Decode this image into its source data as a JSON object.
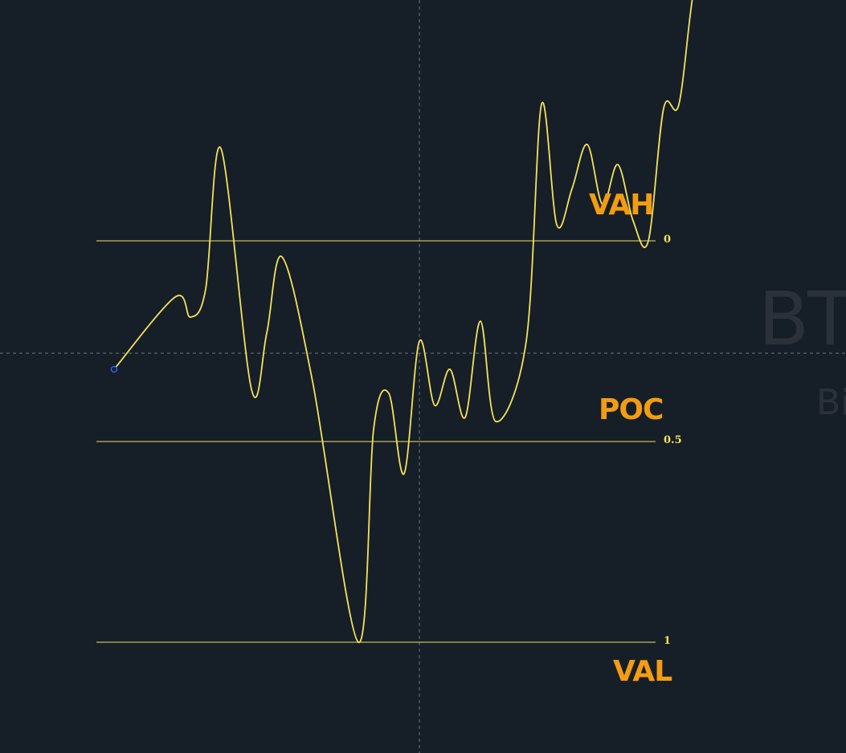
{
  "watermark": {
    "symbol": "BT",
    "subtitle": "Bi"
  },
  "chart_data": {
    "type": "line",
    "y_scale": "fibonacci-retracement",
    "levels": [
      {
        "value": 0,
        "label": "0",
        "zone": "VAH"
      },
      {
        "value": 0.5,
        "label": "0.5",
        "zone": "POC"
      },
      {
        "value": 1,
        "label": "1",
        "zone": "VAL"
      }
    ],
    "series": [
      {
        "color": "#f4e25a",
        "points": [
          [
            0,
            0.32
          ],
          [
            4,
            0.14
          ],
          [
            5,
            0.19
          ],
          [
            6,
            0.12
          ],
          [
            7,
            -0.23
          ],
          [
            9,
            0.37
          ],
          [
            10,
            0.23
          ],
          [
            11,
            0.04
          ],
          [
            13,
            0.35
          ],
          [
            16,
            1.0
          ],
          [
            17,
            0.47
          ],
          [
            18,
            0.38
          ],
          [
            19,
            0.58
          ],
          [
            20,
            0.25
          ],
          [
            21,
            0.41
          ],
          [
            22,
            0.32
          ],
          [
            23,
            0.44
          ],
          [
            24,
            0.2
          ],
          [
            25,
            0.45
          ],
          [
            27,
            0.25
          ],
          [
            28,
            -0.34
          ],
          [
            29,
            -0.04
          ],
          [
            30,
            -0.13
          ],
          [
            31,
            -0.24
          ],
          [
            32,
            -0.09
          ],
          [
            33,
            -0.19
          ],
          [
            34,
            -0.05
          ],
          [
            35,
            0.0
          ],
          [
            36,
            -0.33
          ],
          [
            37,
            -0.34
          ],
          [
            38,
            -0.63
          ],
          [
            39,
            -0.7
          ]
        ]
      }
    ],
    "crosshair": {
      "x": 20,
      "y": 0.28
    },
    "colors": {
      "background": "#161f28",
      "line": "#f4e25a",
      "zone_text": "#f39c12",
      "endpoint_marker": "#2962ff",
      "crosshair": "#6b7580",
      "watermark": "#2b3138"
    }
  }
}
